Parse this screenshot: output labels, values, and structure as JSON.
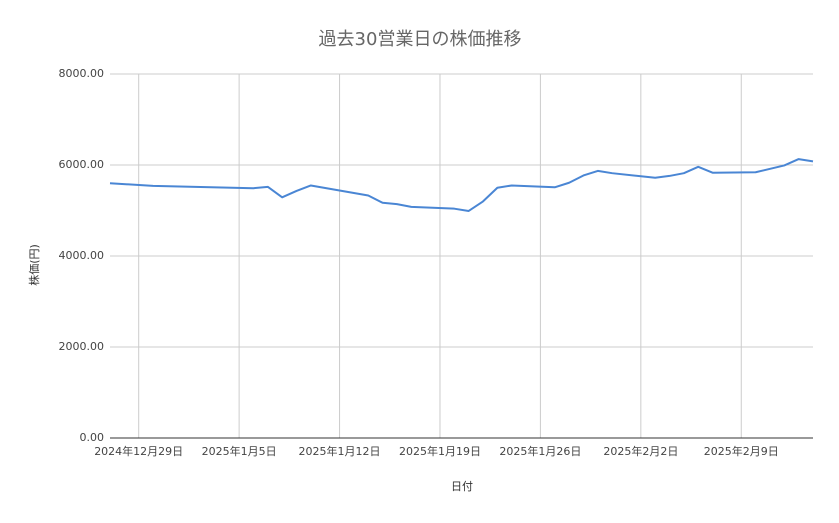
{
  "chart_data": {
    "type": "line",
    "title": "過去30営業日の株価推移",
    "x_label": "日付",
    "y_label": "株価(円)",
    "x": [
      "2024-12-27",
      "2024-12-30",
      "2025-01-06",
      "2025-01-07",
      "2025-01-08",
      "2025-01-09",
      "2025-01-10",
      "2025-01-14",
      "2025-01-15",
      "2025-01-16",
      "2025-01-17",
      "2025-01-20",
      "2025-01-21",
      "2025-01-22",
      "2025-01-23",
      "2025-01-24",
      "2025-01-27",
      "2025-01-28",
      "2025-01-29",
      "2025-01-30",
      "2025-01-31",
      "2025-02-03",
      "2025-02-04",
      "2025-02-05",
      "2025-02-06",
      "2025-02-07",
      "2025-02-10",
      "2025-02-12",
      "2025-02-13",
      "2025-02-14"
    ],
    "series": [
      {
        "name": "株価",
        "color": "#4a86d4",
        "values": [
          5600,
          5540,
          5490,
          5520,
          5290,
          5430,
          5550,
          5330,
          5170,
          5140,
          5080,
          5040,
          4990,
          5200,
          5500,
          5550,
          5510,
          5610,
          5770,
          5870,
          5820,
          5720,
          5760,
          5820,
          5960,
          5830,
          5840,
          5990,
          6130,
          6080
        ]
      }
    ],
    "xlim": [
      "2024-12-27",
      "2025-02-14"
    ],
    "xticks": [
      {
        "value": "2024-12-29",
        "label": "2024年12月29日"
      },
      {
        "value": "2025-01-05",
        "label": "2025年1月5日"
      },
      {
        "value": "2025-01-12",
        "label": "2025年1月12日"
      },
      {
        "value": "2025-01-19",
        "label": "2025年1月19日"
      },
      {
        "value": "2025-01-26",
        "label": "2025年1月26日"
      },
      {
        "value": "2025-02-02",
        "label": "2025年2月2日"
      },
      {
        "value": "2025-02-09",
        "label": "2025年2月9日"
      }
    ],
    "ylim": [
      0,
      8000
    ],
    "yticks": [
      {
        "value": 0,
        "label": "0.00"
      },
      {
        "value": 2000,
        "label": "2000.00"
      },
      {
        "value": 4000,
        "label": "4000.00"
      },
      {
        "value": 6000,
        "label": "6000.00"
      },
      {
        "value": 8000,
        "label": "8000.00"
      }
    ],
    "grid": true
  }
}
